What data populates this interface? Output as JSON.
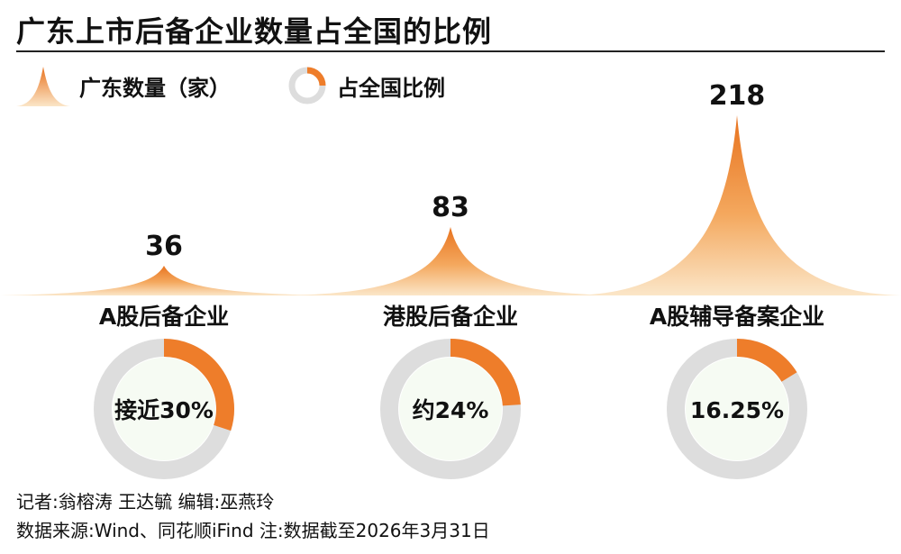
{
  "title": "广东上市后备企业数量占全国的比例",
  "legend": {
    "count_label": "广东数量（家）",
    "share_label": "占全国比例"
  },
  "colors": {
    "peak_top": "#e8731f",
    "peak_base": "#fbe6c8",
    "donut_fill": "#ee7d2a",
    "donut_track": "#dddddd",
    "donut_center": "#f6fbf3"
  },
  "chart_data": {
    "type": "bar",
    "title": "广东上市后备企业数量占全国的比例",
    "categories": [
      "A股后备企业",
      "港股后备企业",
      "A股辅导备案企业"
    ],
    "series": [
      {
        "name": "广东数量（家）",
        "values": [
          36,
          83,
          218
        ],
        "labels": [
          "36",
          "83",
          "218"
        ]
      },
      {
        "name": "占全国比例",
        "values": [
          30,
          24,
          16.25
        ],
        "labels": [
          "接近30%",
          "约24%",
          "16.25%"
        ]
      }
    ]
  },
  "footer": {
    "credits": "记者:翁榕涛 王达毓   编辑:巫燕玲",
    "source": "数据来源:Wind、同花顺iFind   注:数据截至2026年3月31日"
  }
}
